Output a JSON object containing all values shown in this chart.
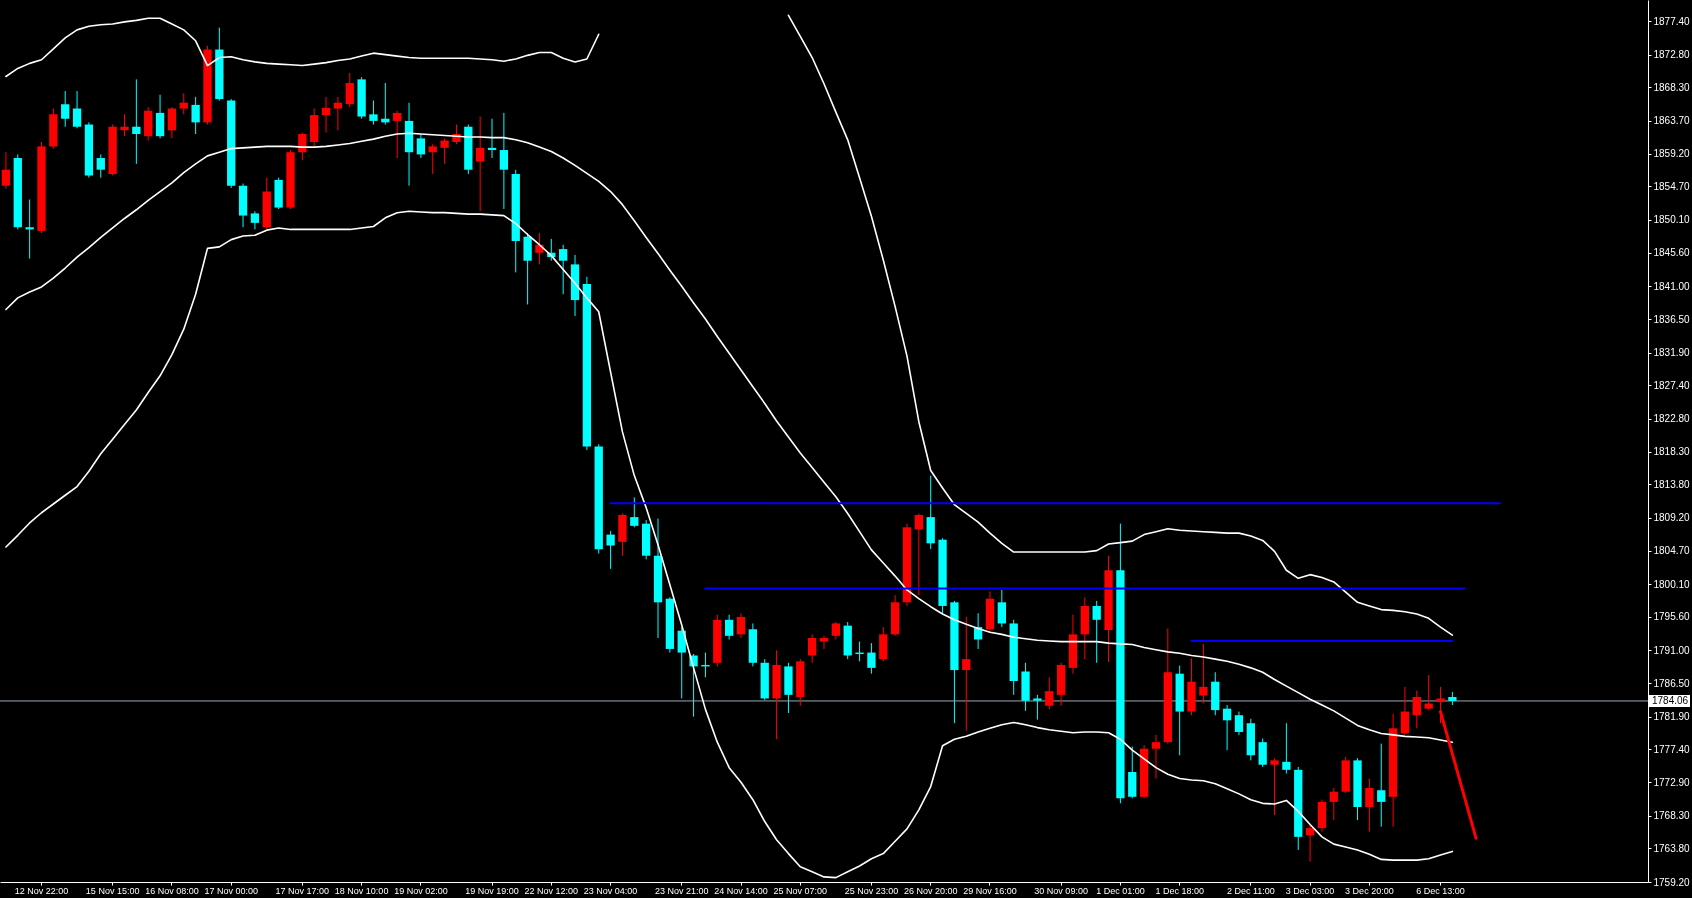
{
  "chart_data": {
    "type": "candlestick",
    "categories": [
      null,
      null,
      null,
      "12 Nov 22:00",
      null,
      null,
      null,
      null,
      null,
      "15 Nov 15:00",
      null,
      null,
      null,
      null,
      "16 Nov 08:00",
      null,
      null,
      null,
      null,
      "17 Nov 00:00",
      null,
      null,
      null,
      null,
      null,
      "17 Nov 17:00",
      null,
      null,
      null,
      null,
      "18 Nov 10:00",
      null,
      null,
      null,
      null,
      "19 Nov 02:00",
      null,
      null,
      null,
      null,
      null,
      "19 Nov 19:00",
      null,
      null,
      null,
      null,
      "22 Nov 12:00",
      null,
      null,
      null,
      null,
      "23 Nov 04:00",
      null,
      null,
      null,
      null,
      null,
      "23 Nov 21:00",
      null,
      null,
      null,
      null,
      "24 Nov 14:00",
      null,
      null,
      null,
      null,
      "25 Nov 07:00",
      null,
      null,
      null,
      null,
      null,
      "25 Nov 23:00",
      null,
      null,
      null,
      null,
      "26 Nov 20:00",
      null,
      null,
      null,
      null,
      "29 Nov 16:00",
      null,
      null,
      null,
      null,
      null,
      "30 Nov 09:00",
      null,
      null,
      null,
      null,
      "1 Dec 01:00",
      null,
      null,
      null,
      null,
      "1 Dec 18:00",
      null,
      null,
      null,
      null,
      null,
      "2 Dec 11:00",
      null,
      null,
      null,
      null,
      "3 Dec 03:00",
      null,
      null,
      null,
      null,
      "3 Dec 20:00",
      null,
      null,
      null,
      null,
      null,
      "6 Dec 13:00",
      null,
      null,
      null,
      null,
      null,
      null,
      null,
      null,
      null,
      null,
      null,
      null,
      null,
      null,
      null,
      null,
      null
    ],
    "ohlc": [
      [
        1854.8,
        1859.4,
        1854.4,
        1857.0
      ],
      [
        1858.6,
        1859.1,
        1848.8,
        1849.1
      ],
      [
        1849.1,
        1852.9,
        1844.8,
        1848.8
      ],
      [
        1848.6,
        1860.8,
        1848.3,
        1860.2
      ],
      [
        1860.2,
        1865.4,
        1859.9,
        1864.6
      ],
      [
        1866.0,
        1867.8,
        1862.9,
        1864.0
      ],
      [
        1865.4,
        1867.8,
        1862.7,
        1862.9
      ],
      [
        1863.2,
        1863.5,
        1855.9,
        1856.2
      ],
      [
        1858.6,
        1859.1,
        1855.9,
        1857.0
      ],
      [
        1856.4,
        1863.2,
        1856.2,
        1862.9
      ],
      [
        1862.4,
        1864.6,
        1861.6,
        1862.9
      ],
      [
        1862.9,
        1869.4,
        1857.8,
        1861.9
      ],
      [
        1861.6,
        1865.6,
        1861.0,
        1865.1
      ],
      [
        1864.8,
        1867.3,
        1861.3,
        1861.6
      ],
      [
        1862.4,
        1865.6,
        1861.3,
        1865.4
      ],
      [
        1865.4,
        1867.5,
        1864.6,
        1866.2
      ],
      [
        1865.9,
        1867.0,
        1861.9,
        1863.5
      ],
      [
        1863.5,
        1874.0,
        1863.2,
        1873.5
      ],
      [
        1873.5,
        1876.5,
        1866.5,
        1866.7
      ],
      [
        1866.5,
        1866.7,
        1854.5,
        1854.8
      ],
      [
        1854.8,
        1855.1,
        1849.1,
        1850.7
      ],
      [
        1851.0,
        1851.3,
        1848.8,
        1849.7
      ],
      [
        1849.1,
        1855.9,
        1848.8,
        1854.0
      ],
      [
        1855.6,
        1855.9,
        1851.6,
        1851.8
      ],
      [
        1851.8,
        1859.7,
        1851.6,
        1859.4
      ],
      [
        1859.4,
        1862.1,
        1858.3,
        1861.9
      ],
      [
        1860.8,
        1865.4,
        1860.2,
        1864.5
      ],
      [
        1864.5,
        1867.0,
        1862.1,
        1865.5
      ],
      [
        1865.4,
        1867.0,
        1862.4,
        1866.2
      ],
      [
        1866.0,
        1870.3,
        1865.6,
        1868.9
      ],
      [
        1869.4,
        1869.7,
        1864.0,
        1864.3
      ],
      [
        1864.6,
        1866.5,
        1863.2,
        1863.7
      ],
      [
        1864.0,
        1868.9,
        1863.2,
        1863.5
      ],
      [
        1863.7,
        1865.1,
        1858.6,
        1864.8
      ],
      [
        1863.7,
        1866.2,
        1854.8,
        1859.4
      ],
      [
        1861.3,
        1861.9,
        1858.6,
        1859.1
      ],
      [
        1859.4,
        1860.5,
        1856.4,
        1860.2
      ],
      [
        1860.0,
        1861.3,
        1857.8,
        1861.0
      ],
      [
        1860.8,
        1863.2,
        1860.5,
        1861.9
      ],
      [
        1862.9,
        1863.2,
        1856.4,
        1857.0
      ],
      [
        1858.1,
        1864.3,
        1851.3,
        1860.0
      ],
      [
        1860.0,
        1864.0,
        1858.6,
        1859.7
      ],
      [
        1859.7,
        1864.8,
        1851.6,
        1857.0
      ],
      [
        1856.4,
        1857.0,
        1842.9,
        1847.2
      ],
      [
        1847.8,
        1848.3,
        1838.5,
        1844.5
      ],
      [
        1845.6,
        1848.3,
        1844.0,
        1846.7
      ],
      [
        1845.6,
        1847.5,
        1844.5,
        1845.0
      ],
      [
        1846.1,
        1846.7,
        1839.9,
        1844.5
      ],
      [
        1844.0,
        1845.3,
        1836.9,
        1839.1
      ],
      [
        1841.3,
        1842.3,
        1818.5,
        1819.0
      ],
      [
        1819.0,
        1819.3,
        1804.3,
        1804.9
      ],
      [
        1806.9,
        1807.4,
        1802.2,
        1805.4
      ],
      [
        1805.9,
        1809.8,
        1804.0,
        1809.6
      ],
      [
        1809.3,
        1812.0,
        1807.9,
        1808.1
      ],
      [
        1808.4,
        1808.9,
        1803.5,
        1804.0
      ],
      [
        1804.0,
        1809.1,
        1792.7,
        1797.6
      ],
      [
        1798.1,
        1798.3,
        1790.7,
        1791.2
      ],
      [
        1793.7,
        1794.2,
        1784.4,
        1790.7
      ],
      [
        1790.3,
        1790.5,
        1781.9,
        1788.8
      ],
      [
        1789.0,
        1790.7,
        1787.3,
        1788.8
      ],
      [
        1789.3,
        1795.9,
        1788.8,
        1795.2
      ],
      [
        1795.2,
        1795.9,
        1792.5,
        1793.0
      ],
      [
        1793.2,
        1796.1,
        1792.7,
        1795.6
      ],
      [
        1793.9,
        1794.7,
        1788.8,
        1789.3
      ],
      [
        1789.3,
        1789.8,
        1784.2,
        1784.4
      ],
      [
        1784.4,
        1791.0,
        1778.8,
        1789.0
      ],
      [
        1788.8,
        1789.3,
        1782.4,
        1784.9
      ],
      [
        1784.6,
        1789.8,
        1783.4,
        1789.5
      ],
      [
        1790.3,
        1793.2,
        1789.3,
        1792.7
      ],
      [
        1792.2,
        1793.0,
        1791.2,
        1792.7
      ],
      [
        1793.0,
        1794.9,
        1792.5,
        1794.7
      ],
      [
        1794.4,
        1794.9,
        1789.8,
        1790.3
      ],
      [
        1790.7,
        1792.2,
        1789.5,
        1790.5
      ],
      [
        1790.7,
        1792.0,
        1787.8,
        1788.6
      ],
      [
        1789.8,
        1794.2,
        1789.5,
        1793.2
      ],
      [
        1793.2,
        1798.6,
        1793.0,
        1797.6
      ],
      [
        1797.6,
        1808.4,
        1797.1,
        1807.9
      ],
      [
        1807.6,
        1809.8,
        1798.6,
        1809.6
      ],
      [
        1809.3,
        1815.0,
        1804.9,
        1805.7
      ],
      [
        1806.2,
        1806.4,
        1796.1,
        1797.1
      ],
      [
        1797.6,
        1797.8,
        1781.0,
        1788.3
      ],
      [
        1788.3,
        1795.6,
        1780.0,
        1789.8
      ],
      [
        1794.2,
        1796.1,
        1791.2,
        1792.5
      ],
      [
        1793.9,
        1799.1,
        1793.4,
        1798.1
      ],
      [
        1797.6,
        1799.3,
        1794.2,
        1794.7
      ],
      [
        1794.7,
        1795.2,
        1784.9,
        1786.8
      ],
      [
        1788.1,
        1789.3,
        1782.7,
        1784.1
      ],
      [
        1784.4,
        1784.9,
        1781.5,
        1784.1
      ],
      [
        1783.4,
        1787.3,
        1782.9,
        1785.4
      ],
      [
        1784.9,
        1789.3,
        1783.4,
        1789.0
      ],
      [
        1788.6,
        1795.9,
        1787.8,
        1793.2
      ],
      [
        1793.2,
        1798.3,
        1789.8,
        1797.1
      ],
      [
        1797.1,
        1797.8,
        1789.3,
        1795.2
      ],
      [
        1793.8,
        1804.0,
        1789.4,
        1802.0
      ],
      [
        1802.0,
        1808.4,
        1770.0,
        1770.7
      ],
      [
        1774.3,
        1777.8,
        1770.7,
        1770.9
      ],
      [
        1770.9,
        1778.0,
        1770.7,
        1777.5
      ],
      [
        1777.5,
        1779.4,
        1773.4,
        1778.4
      ],
      [
        1778.4,
        1794.0,
        1778.2,
        1788.0
      ],
      [
        1787.8,
        1788.9,
        1776.6,
        1782.6
      ],
      [
        1782.6,
        1789.9,
        1782.1,
        1786.7
      ],
      [
        1784.8,
        1791.9,
        1783.7,
        1786.0
      ],
      [
        1786.7,
        1788.0,
        1782.1,
        1782.8
      ],
      [
        1783.0,
        1783.5,
        1777.3,
        1781.4
      ],
      [
        1782.1,
        1782.6,
        1779.4,
        1779.8
      ],
      [
        1781.0,
        1781.6,
        1775.9,
        1776.6
      ],
      [
        1778.4,
        1778.9,
        1775.0,
        1775.3
      ],
      [
        1775.3,
        1776.2,
        1768.4,
        1775.9
      ],
      [
        1775.7,
        1781.0,
        1774.1,
        1774.6
      ],
      [
        1774.6,
        1775.0,
        1763.6,
        1765.4
      ],
      [
        1765.6,
        1767.0,
        1762.0,
        1766.6
      ],
      [
        1766.6,
        1770.5,
        1766.1,
        1770.2
      ],
      [
        1770.2,
        1772.1,
        1767.7,
        1771.6
      ],
      [
        1771.6,
        1776.4,
        1771.4,
        1775.9
      ],
      [
        1775.9,
        1776.2,
        1767.7,
        1769.5
      ],
      [
        1769.5,
        1773.4,
        1766.1,
        1772.1
      ],
      [
        1771.8,
        1778.2,
        1766.8,
        1770.2
      ],
      [
        1770.9,
        1782.3,
        1766.8,
        1780.3
      ],
      [
        1779.6,
        1786.0,
        1779.4,
        1782.6
      ],
      [
        1782.1,
        1785.5,
        1780.3,
        1784.6
      ],
      [
        1783.0,
        1787.6,
        1782.8,
        1783.7
      ],
      [
        1783.9,
        1786.0,
        1781.0,
        1784.4
      ],
      [
        1784.6,
        1785.3,
        1783.5,
        1784.06
      ],
      null,
      null,
      null,
      null,
      null,
      null,
      null,
      null,
      null,
      null,
      null,
      null,
      null,
      null,
      null,
      null
    ],
    "colors": [
      "#ff0000",
      "#00ffff",
      "#00ffff",
      "#ff0000",
      "#ff0000",
      "#00ffff",
      "#00ffff",
      "#00ffff",
      "#00ffff",
      "#ff0000",
      "#ff0000",
      "#00ffff",
      "#ff0000",
      "#00ffff",
      "#ff0000",
      "#ff0000",
      "#00ffff",
      "#ff0000",
      "#00ffff",
      "#00ffff",
      "#00ffff",
      "#00ffff",
      "#ff0000",
      "#00ffff",
      "#ff0000",
      "#ff0000",
      "#ff0000",
      "#ff0000",
      "#ff0000",
      "#ff0000",
      "#00ffff",
      "#00ffff",
      "#00ffff",
      "#ff0000",
      "#00ffff",
      "#00ffff",
      "#ff0000",
      "#ff0000",
      "#ff0000",
      "#00ffff",
      "#ff0000",
      "#00ffff",
      "#00ffff",
      "#00ffff",
      "#00ffff",
      "#ff0000",
      "#00ffff",
      "#00ffff",
      "#00ffff",
      "#00ffff",
      "#00ffff",
      "#00ffff",
      "#ff0000",
      "#00ffff",
      "#00ffff",
      "#00ffff",
      "#00ffff",
      "#00ffff",
      "#00ffff",
      "#00ffff",
      "#ff0000",
      "#00ffff",
      "#ff0000",
      "#00ffff",
      "#00ffff",
      "#ff0000",
      "#00ffff",
      "#ff0000",
      "#ff0000",
      "#ff0000",
      "#ff0000",
      "#00ffff",
      "#00ffff",
      "#00ffff",
      "#ff0000",
      "#ff0000",
      "#ff0000",
      "#ff0000",
      "#00ffff",
      "#00ffff",
      "#00ffff",
      "#ff0000",
      "#00ffff",
      "#ff0000",
      "#00ffff",
      "#00ffff",
      "#00ffff",
      "#00ffff",
      "#ff0000",
      "#ff0000",
      "#ff0000",
      "#ff0000",
      "#00ffff",
      "#ff0000",
      "#00ffff",
      "#00ffff",
      "#ff0000",
      "#ff0000",
      "#ff0000",
      "#00ffff",
      "#ff0000",
      "#ff0000",
      "#00ffff",
      "#00ffff",
      "#00ffff",
      "#00ffff",
      "#00ffff",
      "#ff0000",
      "#00ffff",
      "#00ffff",
      "#ff0000",
      "#ff0000",
      "#ff0000",
      "#ff0000",
      "#00ffff",
      "#ff0000",
      "#00ffff",
      "#ff0000",
      "#ff0000",
      "#ff0000",
      "#ff0000",
      "#ff0000",
      "#00ffff",
      null,
      null,
      null,
      null,
      null,
      null,
      null,
      null,
      null,
      null,
      null,
      null,
      null,
      null,
      null,
      null
    ],
    "series": [
      {
        "type": "line",
        "color": "#ffffff",
        "values": [
          1869.8,
          1870.9,
          1871.6,
          1872.1,
          1873.6,
          1875.1,
          1876.2,
          1876.7,
          1876.9,
          1877.0,
          1877.3,
          1877.5,
          1877.8,
          1877.8,
          1877.0,
          1876.2,
          1874.7,
          1871.3,
          1872.4,
          1872.5,
          1872.1,
          1871.8,
          1871.6,
          1871.5,
          1871.4,
          1871.3,
          1871.5,
          1871.7,
          1872.0,
          1872.2,
          1872.6,
          1873.0,
          1872.8,
          1872.6,
          1872.4,
          1872.3,
          1872.3,
          1872.3,
          1872.3,
          1872.3,
          1872.2,
          1872.1,
          1871.9,
          1872.2,
          1872.7,
          1873.1,
          1873.1,
          1872.3,
          1871.8,
          1872.2,
          1875.6,
          null,
          null,
          null,
          null,
          null,
          null,
          null,
          null,
          null,
          null,
          null,
          null,
          null,
          null,
          null,
          1878.2,
          1875.3,
          1872.4,
          1868.8,
          1864.9,
          1861.1,
          1855.9,
          1850.6,
          1844.6,
          1838.2,
          1831.4,
          1822.4,
          1815.7,
          1813.3,
          1811.0,
          1809.8,
          1808.6,
          1807.1,
          1805.7,
          1804.5,
          1804.5,
          1804.5,
          1804.5,
          1804.5,
          1804.5,
          1804.5,
          1804.7,
          1805.6,
          1805.8,
          1806.0,
          1806.9,
          1807.3,
          1807.7,
          1807.5,
          1807.4,
          1807.3,
          1807.2,
          1807.1,
          1807.1,
          1806.7,
          1806.1,
          1804.6,
          1802.0,
          1800.9,
          1801.4,
          1801.0,
          1800.4,
          1799.0,
          1797.6,
          1797.1,
          1796.6,
          1796.5,
          1796.3,
          1796.0,
          1795.4,
          1794.2,
          1793.1,
          null,
          null,
          null,
          null,
          null,
          null,
          null,
          null,
          null,
          null,
          null,
          null,
          null,
          null,
          null,
          null
        ]
      },
      {
        "type": "line",
        "color": "#ffffff",
        "values": [
          1837.8,
          1839.4,
          1840.2,
          1840.9,
          1842.1,
          1843.5,
          1845.0,
          1846.3,
          1847.7,
          1849.0,
          1850.3,
          1851.5,
          1852.8,
          1854.0,
          1855.2,
          1856.6,
          1857.8,
          1858.9,
          1859.4,
          1859.9,
          1860.0,
          1860.1,
          1860.2,
          1860.2,
          1860.2,
          1860.1,
          1860.1,
          1860.2,
          1860.4,
          1860.6,
          1860.9,
          1861.2,
          1861.6,
          1861.9,
          1862.0,
          1861.9,
          1861.8,
          1861.7,
          1861.6,
          1861.5,
          1861.5,
          1861.4,
          1861.4,
          1861.1,
          1860.7,
          1860.1,
          1859.5,
          1858.6,
          1857.6,
          1856.5,
          1855.4,
          1854.0,
          1852.2,
          1850.0,
          1847.7,
          1845.5,
          1843.2,
          1841.0,
          1838.7,
          1836.5,
          1834.1,
          1831.8,
          1829.5,
          1827.2,
          1824.9,
          1822.5,
          1820.3,
          1818.1,
          1816.1,
          1814.1,
          1812.1,
          1809.8,
          1807.3,
          1804.8,
          1803.0,
          1801.2,
          1799.3,
          1798.1,
          1797.0,
          1796.0,
          1795.2,
          1794.6,
          1794.0,
          1793.5,
          1793.2,
          1792.8,
          1792.6,
          1792.4,
          1792.3,
          1792.2,
          1792.2,
          1792.2,
          1792.2,
          1792.0,
          1791.9,
          1791.8,
          1791.4,
          1791.1,
          1790.8,
          1790.6,
          1790.3,
          1790.1,
          1789.8,
          1789.5,
          1789.1,
          1788.6,
          1788.0,
          1787.0,
          1786.1,
          1785.2,
          1784.3,
          1783.5,
          1782.7,
          1781.7,
          1780.7,
          1780.1,
          1779.6,
          1779.4,
          1779.2,
          1779.1,
          1779.0,
          1778.7,
          1778.4,
          null,
          null,
          null,
          null,
          null,
          null,
          null,
          null,
          null,
          null,
          null,
          null,
          null,
          null,
          null,
          null
        ]
      },
      {
        "type": "line",
        "color": "#ffffff",
        "values": [
          1805.2,
          1806.8,
          1808.5,
          1809.9,
          1811.1,
          1812.3,
          1813.5,
          1815.6,
          1818.0,
          1820.0,
          1822.0,
          1824.0,
          1826.4,
          1828.7,
          1831.6,
          1835.1,
          1839.9,
          1846.2,
          1846.4,
          1847.4,
          1847.9,
          1848.0,
          1848.7,
          1849.0,
          1848.8,
          1848.8,
          1848.8,
          1848.8,
          1848.8,
          1848.8,
          1849.0,
          1849.2,
          1850.4,
          1851.1,
          1851.3,
          1851.2,
          1851.1,
          1851.1,
          1851.0,
          1850.9,
          1850.9,
          1850.8,
          1850.7,
          1849.6,
          1848.1,
          1846.7,
          1845.2,
          1843.3,
          1841.4,
          1839.4,
          1837.5,
          1829.2,
          1821.0,
          1815.0,
          1810.6,
          1805.5,
          1800.0,
          1794.5,
          1788.6,
          1782.9,
          1778.4,
          1774.9,
          1772.9,
          1770.5,
          1767.5,
          1765.0,
          1763.1,
          1761.3,
          1760.6,
          1759.9,
          1759.8,
          1760.6,
          1761.4,
          1762.4,
          1763.1,
          1764.8,
          1766.5,
          1769.1,
          1772.3,
          1777.9,
          1778.8,
          1779.2,
          1779.8,
          1780.3,
          1780.8,
          1781.1,
          1780.8,
          1780.4,
          1780.1,
          1779.9,
          1779.7,
          1779.8,
          1779.8,
          1779.7,
          1778.8,
          1777.3,
          1776.1,
          1774.9,
          1774.0,
          1773.4,
          1773.2,
          1773.1,
          1772.7,
          1772.0,
          1771.3,
          1770.5,
          1770.0,
          1769.9,
          1770.4,
          1768.9,
          1767.1,
          1765.4,
          1764.4,
          1764.0,
          1763.6,
          1763.0,
          1762.3,
          1762.2,
          1762.2,
          1762.2,
          1762.4,
          1762.9,
          1763.4,
          null,
          null,
          null,
          null,
          null,
          null,
          null,
          null,
          null,
          null,
          null,
          null,
          null,
          null,
          null,
          null
        ]
      },
      {
        "type": "line",
        "color": "#0000ff",
        "values": [
          null,
          null,
          null,
          null,
          null,
          null,
          null,
          null,
          null,
          null,
          null,
          null,
          null,
          null,
          null,
          null,
          null,
          null,
          null,
          null,
          null,
          null,
          null,
          null,
          null,
          null,
          null,
          null,
          null,
          null,
          null,
          null,
          null,
          null,
          null,
          null,
          null,
          null,
          null,
          null,
          null,
          null,
          null,
          null,
          null,
          null,
          null,
          null,
          null,
          null,
          null,
          1811.2,
          1811.2,
          1811.2,
          1811.2,
          1811.2,
          1811.2,
          1811.2,
          1811.2,
          1811.2,
          1811.2,
          1811.2,
          1811.2,
          1811.2,
          1811.2,
          1811.2,
          1811.2,
          1811.2,
          1811.2,
          1811.2,
          1811.2,
          1811.2,
          1811.2,
          1811.2,
          1811.2,
          1811.2,
          1811.2,
          1811.2,
          1811.2,
          1811.2,
          1811.2,
          1811.2,
          1811.2,
          1811.2,
          1811.2,
          1811.2,
          1811.2,
          1811.2,
          1811.2,
          1811.2,
          1811.2,
          1811.2,
          1811.2,
          1811.2,
          1811.2,
          1811.2,
          1811.2,
          1811.2,
          1811.2,
          1811.2,
          1811.2,
          1811.2,
          1811.2,
          1811.2,
          1811.2,
          1811.2,
          1811.2,
          1811.2,
          1811.2,
          1811.2,
          1811.2,
          1811.2,
          1811.2,
          1811.2,
          1811.2,
          1811.2,
          1811.2,
          1811.2,
          1811.2,
          1811.2,
          1811.2,
          1811.2,
          1811.2,
          1811.2,
          1811.2,
          1811.2,
          1811.2,
          null,
          null,
          null,
          null,
          null,
          null,
          null,
          null,
          null,
          null,
          null,
          null
        ]
      },
      {
        "type": "line",
        "color": "#0000ff",
        "values": [
          null,
          null,
          null,
          null,
          null,
          null,
          null,
          null,
          null,
          null,
          null,
          null,
          null,
          null,
          null,
          null,
          null,
          null,
          null,
          null,
          null,
          null,
          null,
          null,
          null,
          null,
          null,
          null,
          null,
          null,
          null,
          null,
          null,
          null,
          null,
          null,
          null,
          null,
          null,
          null,
          null,
          null,
          null,
          null,
          null,
          null,
          null,
          null,
          null,
          null,
          null,
          null,
          null,
          null,
          null,
          null,
          null,
          null,
          null,
          1799.5,
          1799.5,
          1799.5,
          1799.5,
          1799.5,
          1799.5,
          1799.5,
          1799.5,
          1799.5,
          1799.5,
          1799.5,
          1799.5,
          1799.5,
          1799.5,
          1799.5,
          1799.5,
          1799.5,
          1799.5,
          1799.5,
          1799.5,
          1799.5,
          1799.5,
          1799.5,
          1799.5,
          1799.5,
          1799.5,
          1799.5,
          1799.5,
          1799.5,
          1799.5,
          1799.5,
          1799.5,
          1799.5,
          1799.5,
          1799.5,
          1799.5,
          1799.5,
          1799.5,
          1799.5,
          1799.5,
          1799.5,
          1799.5,
          1799.5,
          1799.5,
          1799.5,
          1799.5,
          1799.5,
          1799.5,
          1799.5,
          1799.5,
          1799.5,
          1799.5,
          1799.5,
          1799.5,
          1799.5,
          1799.5,
          1799.5,
          1799.5,
          1799.5,
          1799.5,
          1799.5,
          1799.5,
          1799.5,
          1799.5,
          1799.5,
          null,
          null,
          null,
          null,
          null,
          null,
          null,
          null,
          null,
          null,
          null,
          null,
          null,
          null,
          null
        ]
      },
      {
        "type": "line",
        "color": "#0000ff",
        "values": [
          null,
          null,
          null,
          null,
          null,
          null,
          null,
          null,
          null,
          null,
          null,
          null,
          null,
          null,
          null,
          null,
          null,
          null,
          null,
          null,
          null,
          null,
          null,
          null,
          null,
          null,
          null,
          null,
          null,
          null,
          null,
          null,
          null,
          null,
          null,
          null,
          null,
          null,
          null,
          null,
          null,
          null,
          null,
          null,
          null,
          null,
          null,
          null,
          null,
          null,
          null,
          null,
          null,
          null,
          null,
          null,
          null,
          null,
          null,
          null,
          null,
          null,
          null,
          null,
          null,
          null,
          null,
          null,
          null,
          null,
          null,
          null,
          null,
          null,
          null,
          null,
          null,
          null,
          null,
          null,
          null,
          null,
          null,
          null,
          null,
          null,
          null,
          null,
          null,
          null,
          null,
          null,
          null,
          null,
          null,
          null,
          null,
          null,
          null,
          null,
          1792.3,
          1792.3,
          1792.3,
          1792.3,
          1792.3,
          1792.3,
          1792.3,
          1792.3,
          1792.3,
          1792.3,
          1792.3,
          1792.3,
          1792.3,
          1792.3,
          1792.3,
          1792.3,
          1792.3,
          1792.3,
          1792.3,
          1792.3,
          1792.3,
          1792.3,
          1792.3,
          null,
          null,
          null,
          null,
          null,
          null,
          null,
          null,
          null,
          null,
          null,
          null,
          null,
          null,
          null,
          null
        ]
      },
      {
        "type": "line",
        "color": "#ff0000",
        "values": [
          null,
          null,
          null,
          null,
          null,
          null,
          null,
          null,
          null,
          null,
          null,
          null,
          null,
          null,
          null,
          null,
          null,
          null,
          null,
          null,
          null,
          null,
          null,
          null,
          null,
          null,
          null,
          null,
          null,
          null,
          null,
          null,
          null,
          null,
          null,
          null,
          null,
          null,
          null,
          null,
          null,
          null,
          null,
          null,
          null,
          null,
          null,
          null,
          null,
          null,
          null,
          null,
          null,
          null,
          null,
          null,
          null,
          null,
          null,
          null,
          null,
          null,
          null,
          null,
          null,
          null,
          null,
          null,
          null,
          null,
          null,
          null,
          null,
          null,
          null,
          null,
          null,
          null,
          null,
          null,
          null,
          null,
          null,
          null,
          null,
          null,
          null,
          null,
          null,
          null,
          null,
          null,
          null,
          null,
          null,
          null,
          null,
          null,
          null,
          null,
          null,
          null,
          null,
          null,
          null,
          null,
          null,
          null,
          null,
          null,
          null,
          null,
          null,
          null,
          null,
          null,
          null,
          null,
          null,
          null,
          null,
          1782.6,
          1776.8,
          1771.0,
          1765.2,
          null,
          null,
          null,
          null,
          null,
          null,
          null,
          null,
          null,
          null,
          null,
          null,
          null,
          null
        ]
      }
    ],
    "ylim": [
      1759.2,
      1880.3
    ],
    "yticks": [
      {
        "value": 1877.4,
        "label": "1877.40"
      },
      {
        "value": 1872.8,
        "label": "1872.80"
      },
      {
        "value": 1868.3,
        "label": "1868.30"
      },
      {
        "value": 1863.7,
        "label": "1863.70"
      },
      {
        "value": 1859.2,
        "label": "1859.20"
      },
      {
        "value": 1854.7,
        "label": "1854.70"
      },
      {
        "value": 1850.1,
        "label": "1850.10"
      },
      {
        "value": 1845.6,
        "label": "1845.60"
      },
      {
        "value": 1841,
        "label": "1841.00"
      },
      {
        "value": 1836.5,
        "label": "1836.50"
      },
      {
        "value": 1831.9,
        "label": "1831.90"
      },
      {
        "value": 1827.4,
        "label": "1827.40"
      },
      {
        "value": 1822.8,
        "label": "1822.80"
      },
      {
        "value": 1818.3,
        "label": "1818.30"
      },
      {
        "value": 1813.8,
        "label": "1813.80"
      },
      {
        "value": 1809.2,
        "label": "1809.20"
      },
      {
        "value": 1804.7,
        "label": "1804.70"
      },
      {
        "value": 1800.1,
        "label": "1800.10"
      },
      {
        "value": 1795.6,
        "label": "1795.60"
      },
      {
        "value": 1791,
        "label": "1791.00"
      },
      {
        "value": 1786.5,
        "label": "1786.50"
      },
      {
        "value": 1781.9,
        "label": "1781.90"
      },
      {
        "value": 1777.4,
        "label": "1777.40"
      },
      {
        "value": 1772.9,
        "label": "1772.90"
      },
      {
        "value": 1768.3,
        "label": "1768.30"
      },
      {
        "value": 1763.8,
        "label": "1763.80"
      },
      {
        "value": 1759.2,
        "label": "1759.20"
      }
    ],
    "ref_lines": [
      {
        "axis": "y",
        "value": 1784.06,
        "label": "1784.06",
        "color": "#9aa7b4",
        "line_style": "solid"
      }
    ]
  }
}
